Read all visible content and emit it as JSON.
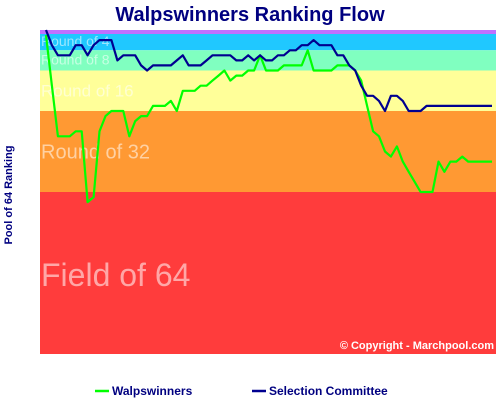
{
  "chart_data": {
    "type": "line",
    "title": "Walpswinners Ranking Flow",
    "ylabel": "Pool of 64 Ranking",
    "xlabel": "",
    "ylim": [
      0,
      64
    ],
    "y_inverted": true,
    "grid": false,
    "legend_position": "bottom",
    "copyright": "© Copyright - Marchpool.com",
    "bands": [
      {
        "label": "Round of 4",
        "from": 0,
        "to": 4,
        "color": "#20c8ff"
      },
      {
        "label": "Round of 8",
        "from": 4,
        "to": 8,
        "color": "#80ffc0"
      },
      {
        "label": "Round of 16",
        "from": 8,
        "to": 16,
        "color": "#ffff99"
      },
      {
        "label": "Round of 32",
        "from": 16,
        "to": 32,
        "color": "#ff9933"
      },
      {
        "label": "Field of 64",
        "from": 32,
        "to": 64,
        "color": "#ff3c3c"
      }
    ],
    "band_label_sizes": [
      14,
      14,
      17,
      20,
      32
    ],
    "x": [
      1,
      2,
      3,
      4,
      5,
      6,
      7,
      8,
      9,
      10,
      11,
      12,
      13,
      14,
      15,
      16,
      17,
      18,
      19,
      20,
      21,
      22,
      23,
      24,
      25,
      26,
      27,
      28,
      29,
      30,
      31,
      32,
      33,
      34,
      35,
      36,
      37,
      38,
      39,
      40,
      41,
      42,
      43,
      44,
      45,
      46,
      47,
      48,
      49,
      50,
      51,
      52,
      53,
      54,
      55,
      56,
      57,
      58,
      59,
      60,
      61,
      62,
      63,
      64,
      65,
      66,
      67,
      68,
      69,
      70,
      71,
      72,
      73,
      74,
      75,
      76
    ],
    "series": [
      {
        "name": "Walpswinners",
        "color": "#00ff00",
        "values": [
          1,
          11,
          21,
          21,
          21,
          20,
          20,
          34,
          33,
          20,
          17,
          16,
          16,
          16,
          21,
          18,
          17,
          17,
          15,
          15,
          15,
          14,
          16,
          12,
          12,
          12,
          11,
          11,
          10,
          9,
          8,
          10,
          9,
          9,
          8,
          8,
          5,
          8,
          8,
          8,
          7,
          7,
          7,
          7,
          4,
          8,
          8,
          8,
          8,
          7,
          7,
          7,
          8,
          10,
          15,
          20,
          21,
          24,
          25,
          23,
          26,
          28,
          30,
          32,
          32,
          32,
          26,
          28,
          26,
          26,
          25,
          26,
          26,
          26,
          26,
          26
        ]
      },
      {
        "name": "Selection Committee",
        "color": "#000090",
        "values": [
          0,
          3,
          5,
          5,
          5,
          3,
          3,
          5,
          3,
          2,
          2,
          2,
          6,
          5,
          5,
          5,
          7,
          8,
          7,
          7,
          7,
          7,
          6,
          5,
          7,
          7,
          7,
          6,
          5,
          5,
          5,
          5,
          6,
          6,
          5,
          6,
          5,
          6,
          6,
          5,
          5,
          4,
          4,
          3,
          3,
          2,
          3,
          3,
          3,
          5,
          5,
          7,
          8,
          11,
          13,
          13,
          14,
          16,
          13,
          13,
          14,
          16,
          16,
          16,
          15,
          15,
          15,
          15,
          15,
          15,
          15,
          15,
          15,
          15,
          15,
          15
        ]
      }
    ]
  }
}
